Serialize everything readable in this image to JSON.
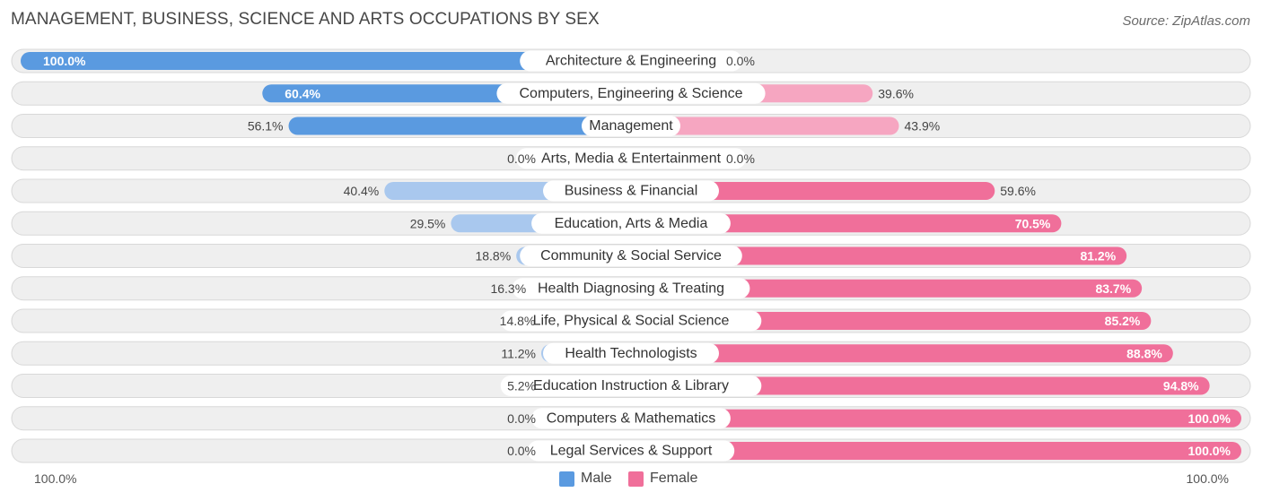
{
  "header": {
    "title": "MANAGEMENT, BUSINESS, SCIENCE AND ARTS OCCUPATIONS BY SEX",
    "source": "Source: ZipAtlas.com"
  },
  "colors": {
    "male_strong": "#5a9ae0",
    "male_light": "#a9c8ee",
    "female_strong": "#f06f9a",
    "female_light": "#f6a6c1",
    "track": "#efefef",
    "track_border": "#d8d8d8"
  },
  "legend": {
    "male_label": "Male",
    "female_label": "Female",
    "male_color": "#5a9ae0",
    "female_color": "#f06f9a"
  },
  "axis": {
    "left_label": "100.0%",
    "right_label": "100.0%"
  },
  "chart_data": {
    "type": "bar",
    "orientation": "horizontal-diverging",
    "title": "MANAGEMENT, BUSINESS, SCIENCE AND ARTS OCCUPATIONS BY SEX",
    "xlim": [
      -100,
      100
    ],
    "categories": [
      "Architecture & Engineering",
      "Computers, Engineering & Science",
      "Management",
      "Arts, Media & Entertainment",
      "Business & Financial",
      "Education, Arts & Media",
      "Community & Social Service",
      "Health Diagnosing & Treating",
      "Life, Physical & Social Science",
      "Health Technologists",
      "Education Instruction & Library",
      "Computers & Mathematics",
      "Legal Services & Support"
    ],
    "series": [
      {
        "name": "Male",
        "values": [
          100.0,
          60.4,
          56.1,
          0.0,
          40.4,
          29.5,
          18.8,
          16.3,
          14.8,
          11.2,
          5.2,
          0.0,
          0.0
        ],
        "labels": [
          "100.0%",
          "60.4%",
          "56.1%",
          "0.0%",
          "40.4%",
          "29.5%",
          "18.8%",
          "16.3%",
          "14.8%",
          "11.2%",
          "5.2%",
          "0.0%",
          "0.0%"
        ]
      },
      {
        "name": "Female",
        "values": [
          0.0,
          39.6,
          43.9,
          0.0,
          59.6,
          70.5,
          81.2,
          83.7,
          85.2,
          88.8,
          94.8,
          100.0,
          100.0
        ],
        "labels": [
          "0.0%",
          "39.6%",
          "43.9%",
          "0.0%",
          "59.6%",
          "70.5%",
          "81.2%",
          "83.7%",
          "85.2%",
          "88.8%",
          "94.8%",
          "100.0%",
          "100.0%"
        ]
      }
    ],
    "legend_position": "bottom-center"
  }
}
